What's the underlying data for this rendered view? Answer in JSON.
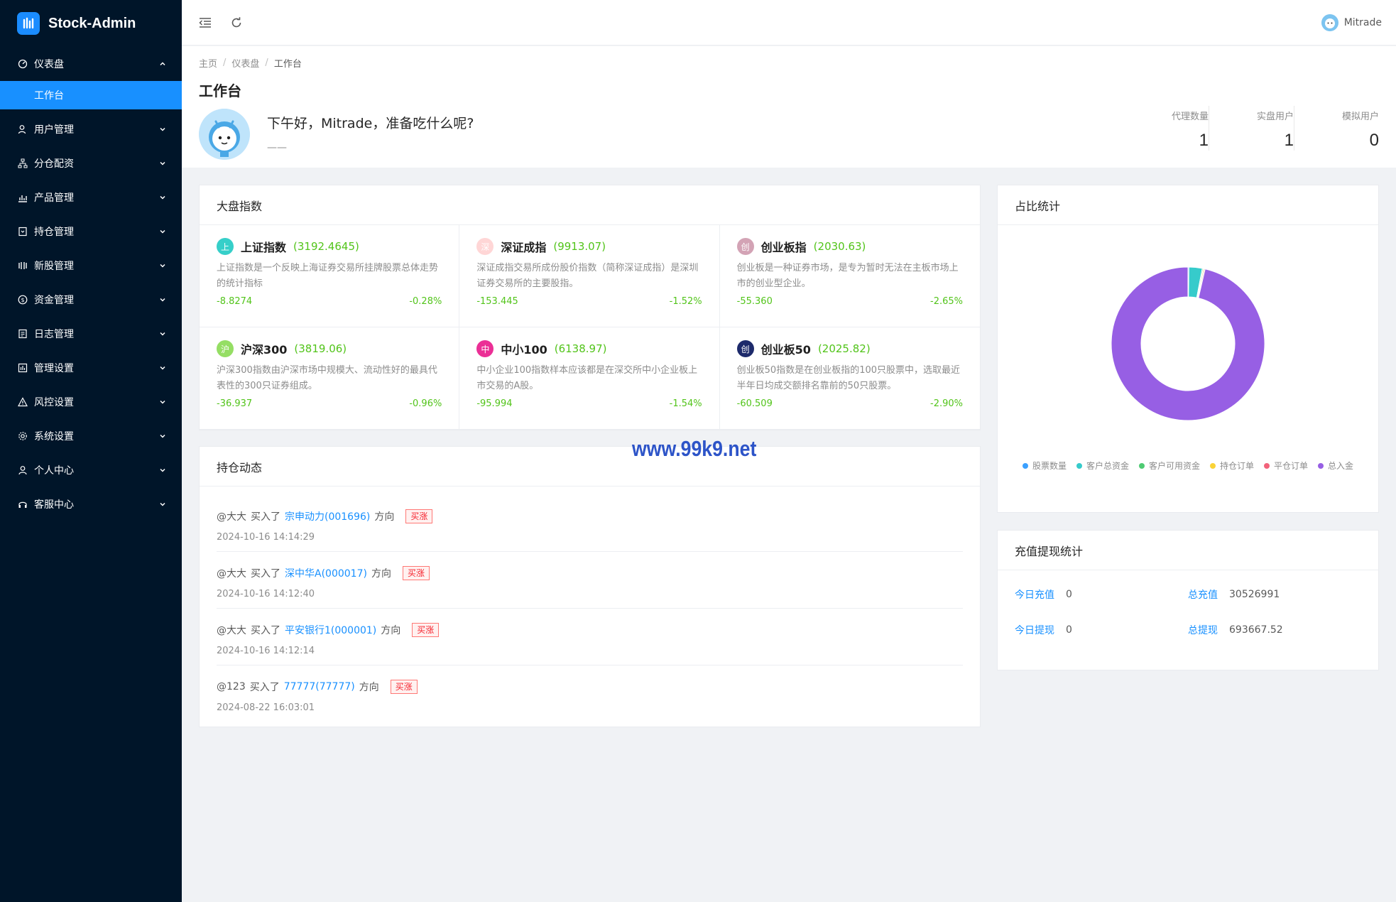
{
  "app": {
    "name": "Stock-Admin"
  },
  "sidebar": {
    "items": [
      {
        "label": "仪表盘",
        "icon": "dashboard-icon",
        "expanded": true,
        "children": [
          {
            "label": "工作台"
          }
        ]
      },
      {
        "label": "用户管理",
        "icon": "user-icon"
      },
      {
        "label": "分仓配资",
        "icon": "sitemap-icon"
      },
      {
        "label": "产品管理",
        "icon": "chart-icon"
      },
      {
        "label": "持仓管理",
        "icon": "position-icon"
      },
      {
        "label": "新股管理",
        "icon": "ipo-icon"
      },
      {
        "label": "资金管理",
        "icon": "dollar-icon"
      },
      {
        "label": "日志管理",
        "icon": "log-icon"
      },
      {
        "label": "管理设置",
        "icon": "manage-icon"
      },
      {
        "label": "风控设置",
        "icon": "warning-icon"
      },
      {
        "label": "系统设置",
        "icon": "gear-icon"
      },
      {
        "label": "个人中心",
        "icon": "person-icon"
      },
      {
        "label": "客服中心",
        "icon": "headset-icon"
      }
    ]
  },
  "header": {
    "username": "Mitrade"
  },
  "breadcrumb": [
    "主页",
    "仪表盘",
    "工作台"
  ],
  "page": {
    "title": "工作台",
    "greeting": "下午好，Mitrade，准备吃什么呢?",
    "subtext": "——"
  },
  "stats": [
    {
      "label": "代理数量",
      "value": "1"
    },
    {
      "label": "实盘用户",
      "value": "1"
    },
    {
      "label": "模拟用户",
      "value": "0"
    }
  ],
  "market": {
    "title": "大盘指数",
    "indices": [
      {
        "badge": "上",
        "badge_color": "#36cfc9",
        "name": "上证指数",
        "value": "(3192.4645)",
        "desc": "上证指数是一个反映上海证券交易所挂牌股票总体走势的统计指标",
        "change": "-8.8274",
        "percent": "-0.28%"
      },
      {
        "badge": "深",
        "badge_color": "#ffd6d6",
        "name": "深证成指",
        "value": "(9913.07)",
        "desc": "深证成指交易所成份股价指数（简称深证成指）是深圳证券交易所的主要股指。",
        "change": "-153.445",
        "percent": "-1.52%"
      },
      {
        "badge": "创",
        "badge_color": "#d3a3b5",
        "name": "创业板指",
        "value": "(2030.63)",
        "desc": "创业板是一种证券市场，是专为暂时无法在主板市场上市的创业型企业。",
        "change": "-55.360",
        "percent": "-2.65%"
      },
      {
        "badge": "沪",
        "badge_color": "#95de64",
        "name": "沪深300",
        "value": "(3819.06)",
        "desc": "沪深300指数由沪深市场中规模大、流动性好的最具代表性的300只证券组成。",
        "change": "-36.937",
        "percent": "-0.96%"
      },
      {
        "badge": "中",
        "badge_color": "#eb2f96",
        "name": "中小100",
        "value": "(6138.97)",
        "desc": "中小企业100指数样本应该都是在深交所中小企业板上市交易的A股。",
        "change": "-95.994",
        "percent": "-1.54%"
      },
      {
        "badge": "创",
        "badge_color": "#1d2a6b",
        "name": "创业板50",
        "value": "(2025.82)",
        "desc": "创业板50指数是在创业板指的100只股票中，选取最近半年日均成交额排名靠前的50只股票。",
        "change": "-60.509",
        "percent": "-2.90%"
      }
    ]
  },
  "holdings": {
    "title": "持仓动态",
    "items": [
      {
        "user": "@大大",
        "action": "买入了",
        "stock": "宗申动力(001696)",
        "dir_label": "方向",
        "tag": "买涨",
        "time": "2024-10-16 14:14:29"
      },
      {
        "user": "@大大",
        "action": "买入了",
        "stock": "深中华A(000017)",
        "dir_label": "方向",
        "tag": "买涨",
        "time": "2024-10-16 14:12:40"
      },
      {
        "user": "@大大",
        "action": "买入了",
        "stock": "平安银行1(000001)",
        "dir_label": "方向",
        "tag": "买涨",
        "time": "2024-10-16 14:12:14"
      },
      {
        "user": "@123",
        "action": "买入了",
        "stock": "77777(77777)",
        "dir_label": "方向",
        "tag": "买涨",
        "time": "2024-08-22 16:03:01"
      }
    ]
  },
  "ratio": {
    "title": "占比统计",
    "chart_data": {
      "type": "pie",
      "donut": true,
      "series": [
        {
          "name": "股票数量",
          "color": "#3ba0ff",
          "value": 0.2
        },
        {
          "name": "客户总资金",
          "color": "#36cbcb",
          "value": 2.8
        },
        {
          "name": "客户可用资金",
          "color": "#4ecb73",
          "value": 0.2
        },
        {
          "name": "持仓订单",
          "color": "#fad337",
          "value": 0.2
        },
        {
          "name": "平仓订单",
          "color": "#f2637b",
          "value": 0.2
        },
        {
          "name": "总入金",
          "color": "#975fe4",
          "value": 96.4
        }
      ],
      "legend": "bottom"
    }
  },
  "finance": {
    "title": "充值提现统计",
    "rows": [
      {
        "label": "今日充值",
        "value": "0"
      },
      {
        "label": "总充值",
        "value": "30526991"
      },
      {
        "label": "今日提现",
        "value": "0"
      },
      {
        "label": "总提现",
        "value": "693667.52"
      }
    ]
  },
  "watermark": "www.99k9.net"
}
